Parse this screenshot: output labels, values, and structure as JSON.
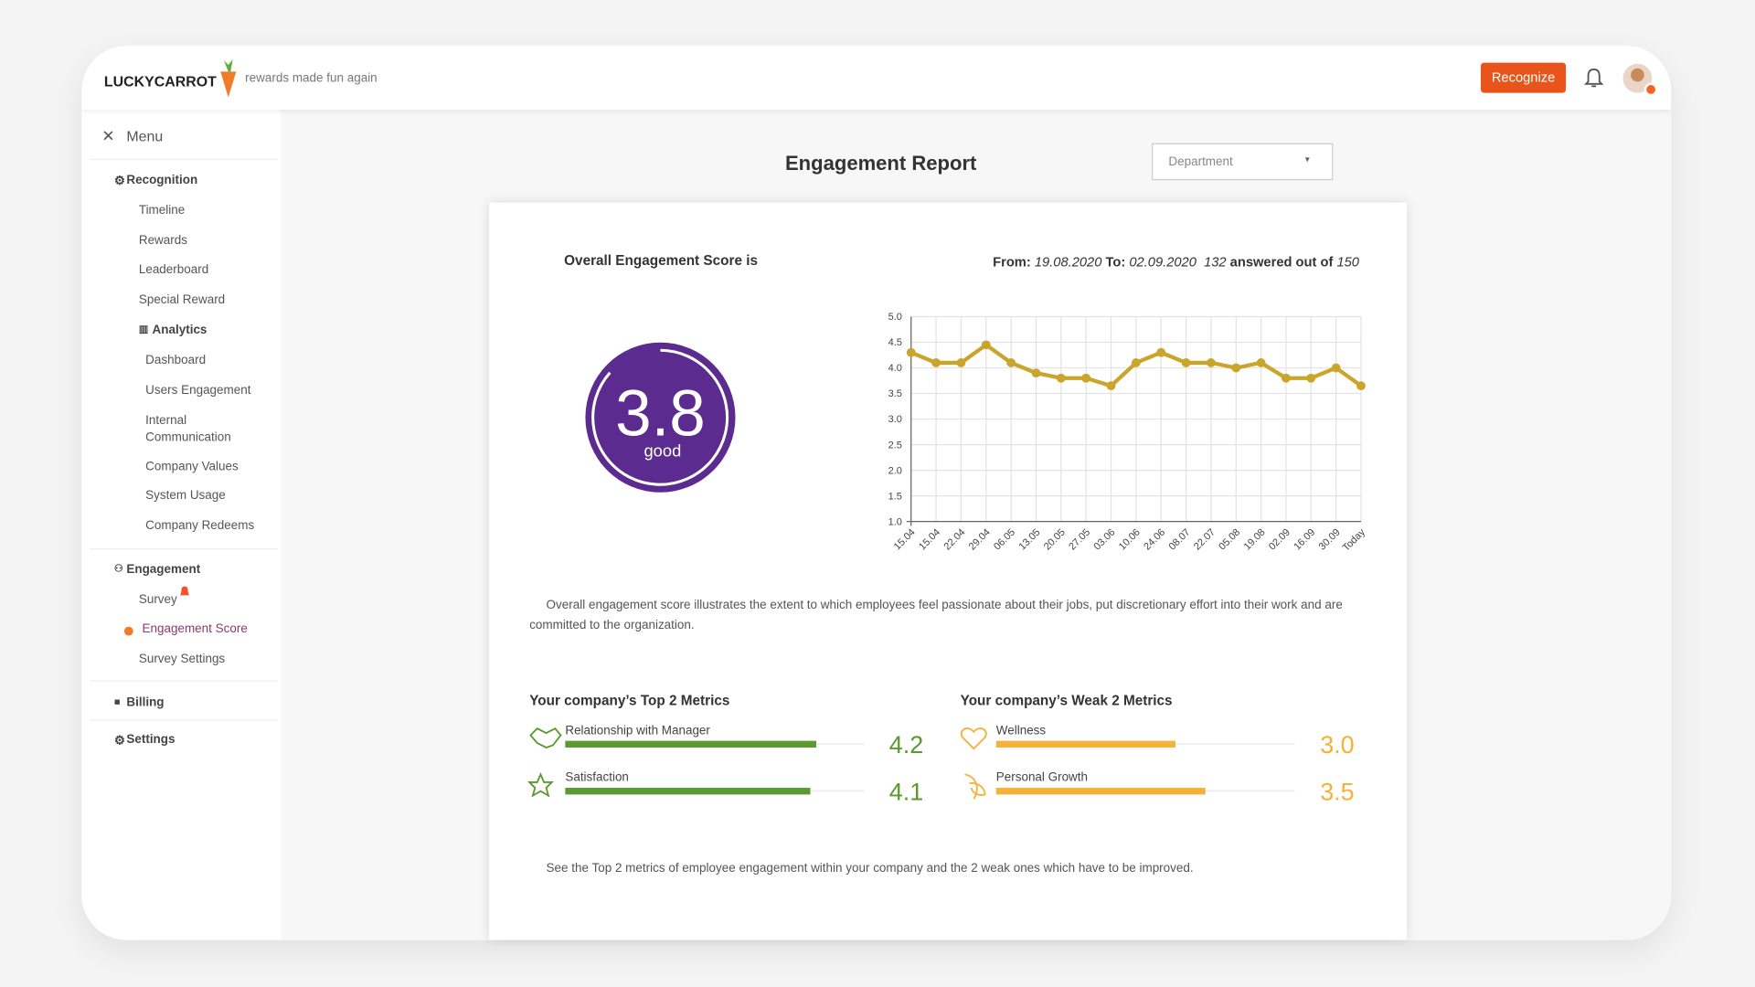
{
  "header": {
    "brand": "LUCKYCARROT",
    "tagline": "rewards made fun again",
    "button": "Recognize"
  },
  "menu": {
    "close": "Menu",
    "recognition": {
      "title": "Recognition",
      "items": [
        "Timeline",
        "Rewards",
        "Leaderboard",
        "Special Reward"
      ]
    },
    "analytics": {
      "title": "Analytics",
      "items": [
        "Dashboard",
        "Users Engagement",
        "Internal Communication",
        "Company Values",
        "System Usage",
        "Company Redeems"
      ]
    },
    "engagement": {
      "title": "Engagement",
      "items": [
        "Survey",
        "Engagement Score",
        "Survey Settings"
      ]
    },
    "billing": "Billing",
    "settings": "Settings"
  },
  "report": {
    "title": "Engagement Report",
    "dropdown": "Department",
    "score_heading": "Overall Engagement Score is",
    "period": {
      "from_label": "From:",
      "from": "19.08.2020",
      "to_label": "To:",
      "to": "02.09.2020",
      "answered": 132,
      "answered_label": "answered out of",
      "total": 150
    },
    "score": 3.8,
    "score_label": "good",
    "description": "Overall engagement score illustrates the extent to which employees feel passionate about their jobs, put discretionary effort into their work and are committed to the organization.",
    "chart": {
      "type": "line",
      "color": "#c9a52c",
      "grid": true,
      "categories": [
        "15.04",
        "15.04",
        "22.04",
        "29.04",
        "06.05",
        "13.05",
        "20.05",
        "27.05",
        "03.06",
        "10.06",
        "24.06",
        "08.07",
        "22.07",
        "05.08",
        "19.08",
        "02.09",
        "16.09",
        "30.09",
        "Today"
      ],
      "values": [
        4.3,
        4.1,
        4.1,
        4.45,
        4.1,
        3.9,
        3.8,
        3.8,
        3.65,
        4.1,
        4.3,
        4.1,
        4.1,
        4.0,
        4.1,
        3.8,
        3.8,
        4.0,
        3.65
      ],
      "ylim": [
        1,
        5
      ],
      "yticks": [
        {
          "value": 1,
          "label": "1.0"
        },
        {
          "value": 1.5,
          "label": "1.5"
        },
        {
          "value": 2,
          "label": "2.0"
        },
        {
          "value": 2.5,
          "label": "2.5"
        },
        {
          "value": 3,
          "label": "3.0"
        },
        {
          "value": 3.5,
          "label": "3.5"
        },
        {
          "value": 4,
          "label": "4.0"
        },
        {
          "value": 4.5,
          "label": "4.5"
        },
        {
          "value": 5,
          "label": "5.0"
        }
      ]
    },
    "top_metrics": {
      "title": "Your company’s Top 2 Metrics",
      "color": "#5a9a2e",
      "items": [
        {
          "name": "Relationship with Manager",
          "value": 4.2
        },
        {
          "name": "Satisfaction",
          "value": 4.1
        }
      ]
    },
    "weak_metrics": {
      "title": "Your company’s Weak 2 Metrics",
      "color": "#f5b13a",
      "items": [
        {
          "name": "Wellness",
          "value": 3,
          "value_label": "3.0"
        },
        {
          "name": "Personal Growth",
          "value": 3.5
        }
      ]
    },
    "footnote": "See the Top 2 metrics of employee engagement within your company and the 2 weak ones which have to be improved."
  }
}
